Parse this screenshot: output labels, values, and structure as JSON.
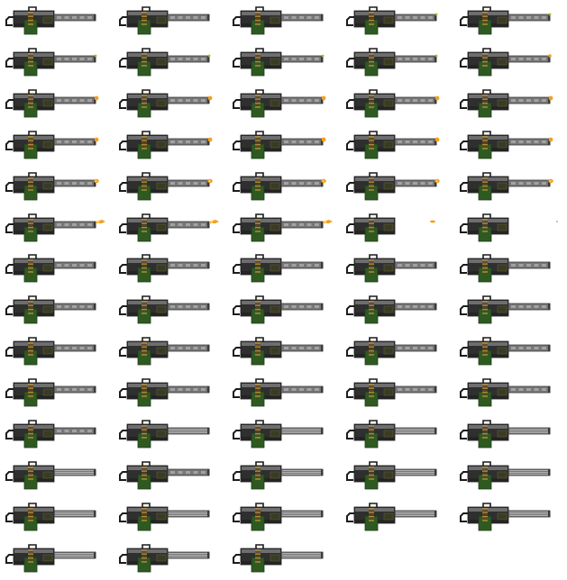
{
  "sheet": {
    "name": "minigun-sprite-sheet",
    "columns": 5,
    "rows": 14,
    "frame_count": 68,
    "colors": {
      "background": "#ffffff",
      "body_dark": "#2f2f2f",
      "body_light": "#6e6e6e",
      "body_outline": "#1a1a1a",
      "handle": "#1c1c1c",
      "grip_green": "#2e5a22",
      "grip_green_dark": "#1f3d17",
      "ammo_brass": "#b08a3c",
      "ammo_dark": "#5a4620",
      "barrel": "#777777",
      "barrel_light": "#c7c7c7",
      "barrel_dark": "#3a3a3a",
      "sight": "#3b3b24",
      "muzzle_flash": "#f2a020",
      "muzzle_flash_core": "#ffd36a",
      "muzzle_spark": "#b0b030"
    },
    "frames": [
      {
        "barrel": "solid",
        "flash": "none"
      },
      {
        "barrel": "solid",
        "flash": "none"
      },
      {
        "barrel": "solid",
        "flash": "none"
      },
      {
        "barrel": "solid",
        "flash": "spark"
      },
      {
        "barrel": "solid",
        "flash": "spark"
      },
      {
        "barrel": "solid",
        "flash": "spark"
      },
      {
        "barrel": "solid",
        "flash": "spark"
      },
      {
        "barrel": "solid",
        "flash": "spark"
      },
      {
        "barrel": "solid",
        "flash": "spark"
      },
      {
        "barrel": "solid",
        "flash": "spark-orange"
      },
      {
        "barrel": "solid",
        "flash": "small"
      },
      {
        "barrel": "solid",
        "flash": "small"
      },
      {
        "barrel": "solid",
        "flash": "small"
      },
      {
        "barrel": "solid",
        "flash": "small"
      },
      {
        "barrel": "solid",
        "flash": "small"
      },
      {
        "barrel": "solid",
        "flash": "small"
      },
      {
        "barrel": "solid",
        "flash": "small"
      },
      {
        "barrel": "solid",
        "flash": "small"
      },
      {
        "barrel": "solid",
        "flash": "small"
      },
      {
        "barrel": "solid",
        "flash": "small"
      },
      {
        "barrel": "solid",
        "flash": "medium"
      },
      {
        "barrel": "solid",
        "flash": "medium"
      },
      {
        "barrel": "solid",
        "flash": "medium"
      },
      {
        "barrel": "solid",
        "flash": "medium"
      },
      {
        "barrel": "solid",
        "flash": "medium"
      },
      {
        "barrel": "solid",
        "flash": "large"
      },
      {
        "barrel": "solid",
        "flash": "large"
      },
      {
        "barrel": "solid",
        "flash": "large"
      },
      {
        "barrel": "none",
        "flash": "detached"
      },
      {
        "barrel": "none",
        "flash": "ember"
      },
      {
        "barrel": "solid",
        "flash": "none"
      },
      {
        "barrel": "solid",
        "flash": "none"
      },
      {
        "barrel": "solid",
        "flash": "none"
      },
      {
        "barrel": "solid",
        "flash": "none"
      },
      {
        "barrel": "solid",
        "flash": "none"
      },
      {
        "barrel": "solid",
        "flash": "none"
      },
      {
        "barrel": "solid",
        "flash": "none"
      },
      {
        "barrel": "solid",
        "flash": "none"
      },
      {
        "barrel": "solid",
        "flash": "none"
      },
      {
        "barrel": "solid",
        "flash": "none"
      },
      {
        "barrel": "solid",
        "flash": "none"
      },
      {
        "barrel": "solid",
        "flash": "none"
      },
      {
        "barrel": "solid",
        "flash": "none"
      },
      {
        "barrel": "solid",
        "flash": "none"
      },
      {
        "barrel": "solid",
        "flash": "none"
      },
      {
        "barrel": "solid",
        "flash": "none"
      },
      {
        "barrel": "solid",
        "flash": "none"
      },
      {
        "barrel": "solid",
        "flash": "none"
      },
      {
        "barrel": "solid",
        "flash": "none"
      },
      {
        "barrel": "solid",
        "flash": "none"
      },
      {
        "barrel": "solid",
        "flash": "none"
      },
      {
        "barrel": "spun",
        "flash": "none"
      },
      {
        "barrel": "spun",
        "flash": "none"
      },
      {
        "barrel": "spun",
        "flash": "none"
      },
      {
        "barrel": "spun",
        "flash": "none"
      },
      {
        "barrel": "spun",
        "flash": "none"
      },
      {
        "barrel": "solid",
        "flash": "none"
      },
      {
        "barrel": "spun",
        "flash": "none"
      },
      {
        "barrel": "spun",
        "flash": "none"
      },
      {
        "barrel": "spun",
        "flash": "none"
      },
      {
        "barrel": "spun",
        "flash": "none"
      },
      {
        "barrel": "spun",
        "flash": "none"
      },
      {
        "barrel": "spun",
        "flash": "none"
      },
      {
        "barrel": "spun",
        "flash": "none"
      },
      {
        "barrel": "spun",
        "flash": "none"
      },
      {
        "barrel": "spun",
        "flash": "none"
      },
      {
        "barrel": "spun",
        "flash": "none"
      },
      {
        "barrel": "spun",
        "flash": "none"
      }
    ]
  }
}
